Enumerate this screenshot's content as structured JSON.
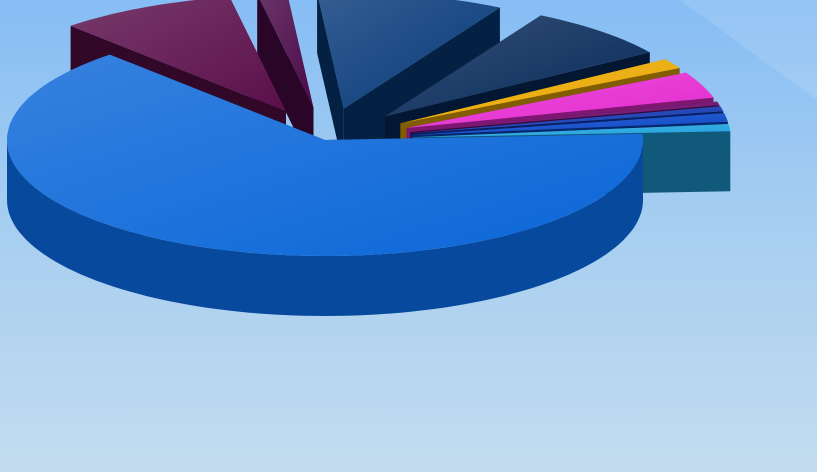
{
  "chart_data": {
    "type": "pie",
    "style": "3d-exploded",
    "title": "",
    "legend": "none",
    "data_labels": "none",
    "slices": [
      {
        "value": 64.0,
        "color": "#0a66d8"
      },
      {
        "value": 9.0,
        "color": "#5a0f4a"
      },
      {
        "value": 1.5,
        "color": "#4a0a48"
      },
      {
        "value": 9.5,
        "color": "#083a7a"
      },
      {
        "value": 7.5,
        "color": "#082a5a"
      },
      {
        "value": 1.4,
        "color": "#eaa800"
      },
      {
        "value": 3.7,
        "color": "#e52ad0"
      },
      {
        "value": 0.5,
        "color": "#6a0a6a"
      },
      {
        "value": 0.7,
        "color": "#1238b0"
      },
      {
        "value": 1.2,
        "color": "#0a46c8"
      },
      {
        "value": 1.0,
        "color": "#1fa2dd"
      }
    ]
  }
}
